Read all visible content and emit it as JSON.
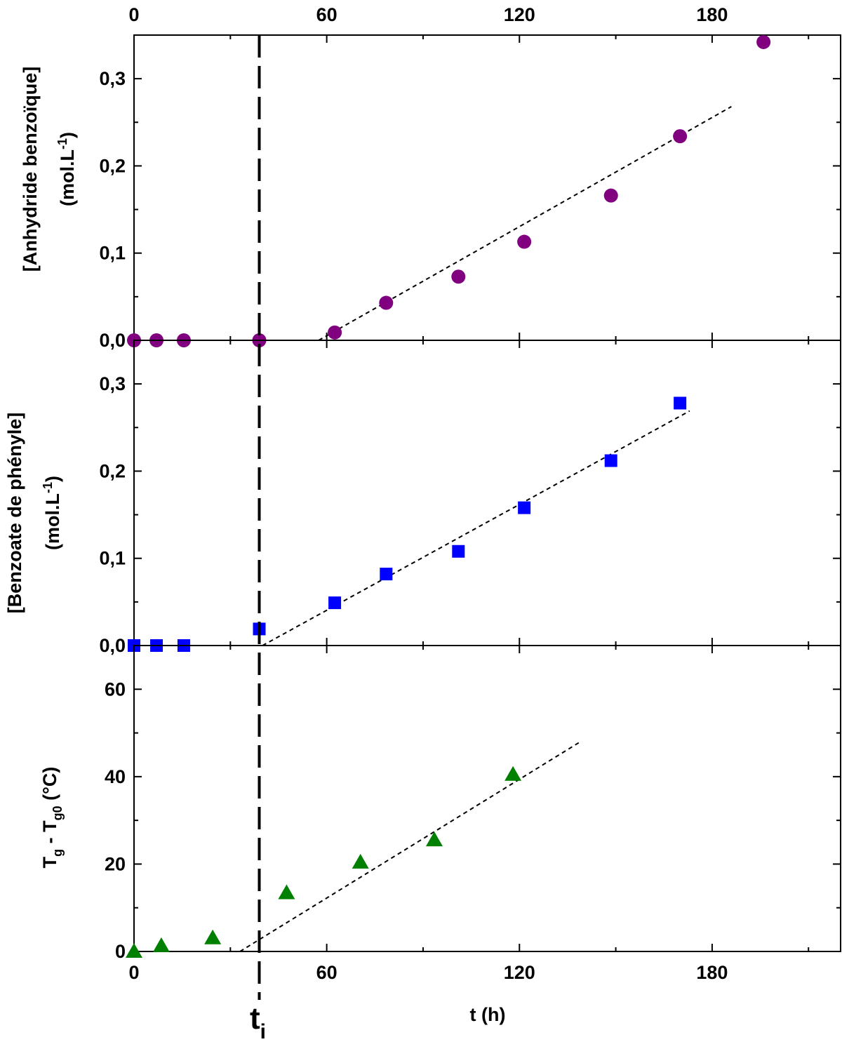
{
  "chart_data": [
    {
      "type": "scatter",
      "ylabel_line1": "[Anhydride benzoïque]",
      "ylabel_line2": "(mol.L",
      "ylabel_sup": "-1",
      "ylabel_close": ")",
      "xlim": [
        0,
        220
      ],
      "ylim": [
        0,
        0.35
      ],
      "yticks": [
        0.0,
        0.1,
        0.2,
        0.3
      ],
      "ytick_labels": [
        "0,0",
        "0,1",
        "0,2",
        "0,3"
      ],
      "marker": "circle",
      "color": "#800080",
      "points": [
        [
          0,
          0.0
        ],
        [
          7,
          0.0
        ],
        [
          15.5,
          0.0
        ],
        [
          39,
          0.0
        ],
        [
          62.5,
          0.009
        ],
        [
          78.5,
          0.043
        ],
        [
          101,
          0.073
        ],
        [
          121.5,
          0.113
        ],
        [
          148.5,
          0.166
        ],
        [
          170,
          0.234
        ],
        [
          196,
          0.342
        ]
      ],
      "fit_line": [
        [
          57.5,
          0.0
        ],
        [
          186,
          0.268
        ]
      ]
    },
    {
      "type": "scatter",
      "ylabel_line1": "[Benzoate de phényle]",
      "ylabel_line2": "(mol.L",
      "ylabel_sup": "-1",
      "ylabel_close": ")",
      "xlim": [
        0,
        220
      ],
      "ylim": [
        0,
        0.35
      ],
      "yticks": [
        0.0,
        0.1,
        0.2,
        0.3
      ],
      "ytick_labels": [
        "0,0",
        "0,1",
        "0,2",
        "0,3"
      ],
      "marker": "square",
      "color": "#0000ff",
      "points": [
        [
          0,
          0.0
        ],
        [
          7,
          0.0
        ],
        [
          15.5,
          0.0
        ],
        [
          39,
          0.019
        ],
        [
          62.5,
          0.049
        ],
        [
          78.5,
          0.082
        ],
        [
          101,
          0.108
        ],
        [
          121.5,
          0.158
        ],
        [
          148.5,
          0.212
        ],
        [
          170,
          0.278
        ]
      ],
      "fit_line": [
        [
          40,
          0.0
        ],
        [
          173,
          0.269
        ]
      ]
    },
    {
      "type": "scatter",
      "ylabel_main": "T",
      "ylabel_sub1": "g",
      "ylabel_mid": " - T",
      "ylabel_sub2": "g0",
      "ylabel_tail": " (°C)",
      "xlabel": "t (h)",
      "xlim": [
        0,
        220
      ],
      "ylim": [
        0,
        70
      ],
      "yticks": [
        0,
        20,
        40,
        60
      ],
      "ytick_labels": [
        "0",
        "20",
        "40",
        "60"
      ],
      "xticks": [
        0,
        60,
        120,
        180
      ],
      "xtick_labels": [
        "0",
        "60",
        "120",
        "180"
      ],
      "marker": "triangle",
      "color": "#008000",
      "points": [
        [
          0,
          0.0
        ],
        [
          8.5,
          1.3
        ],
        [
          24.5,
          3.1
        ],
        [
          47.5,
          13.4
        ],
        [
          70.5,
          20.4
        ],
        [
          93.5,
          25.5
        ],
        [
          118,
          40.5
        ]
      ],
      "fit_line": [
        [
          33,
          0.0
        ],
        [
          139,
          48.0
        ]
      ]
    }
  ],
  "top_axis": {
    "ticks": [
      0,
      60,
      120,
      180
    ],
    "tick_labels": [
      "0",
      "60",
      "120",
      "180"
    ]
  },
  "marker_line": {
    "x": 39,
    "label_main": "t",
    "label_sub": "i"
  }
}
